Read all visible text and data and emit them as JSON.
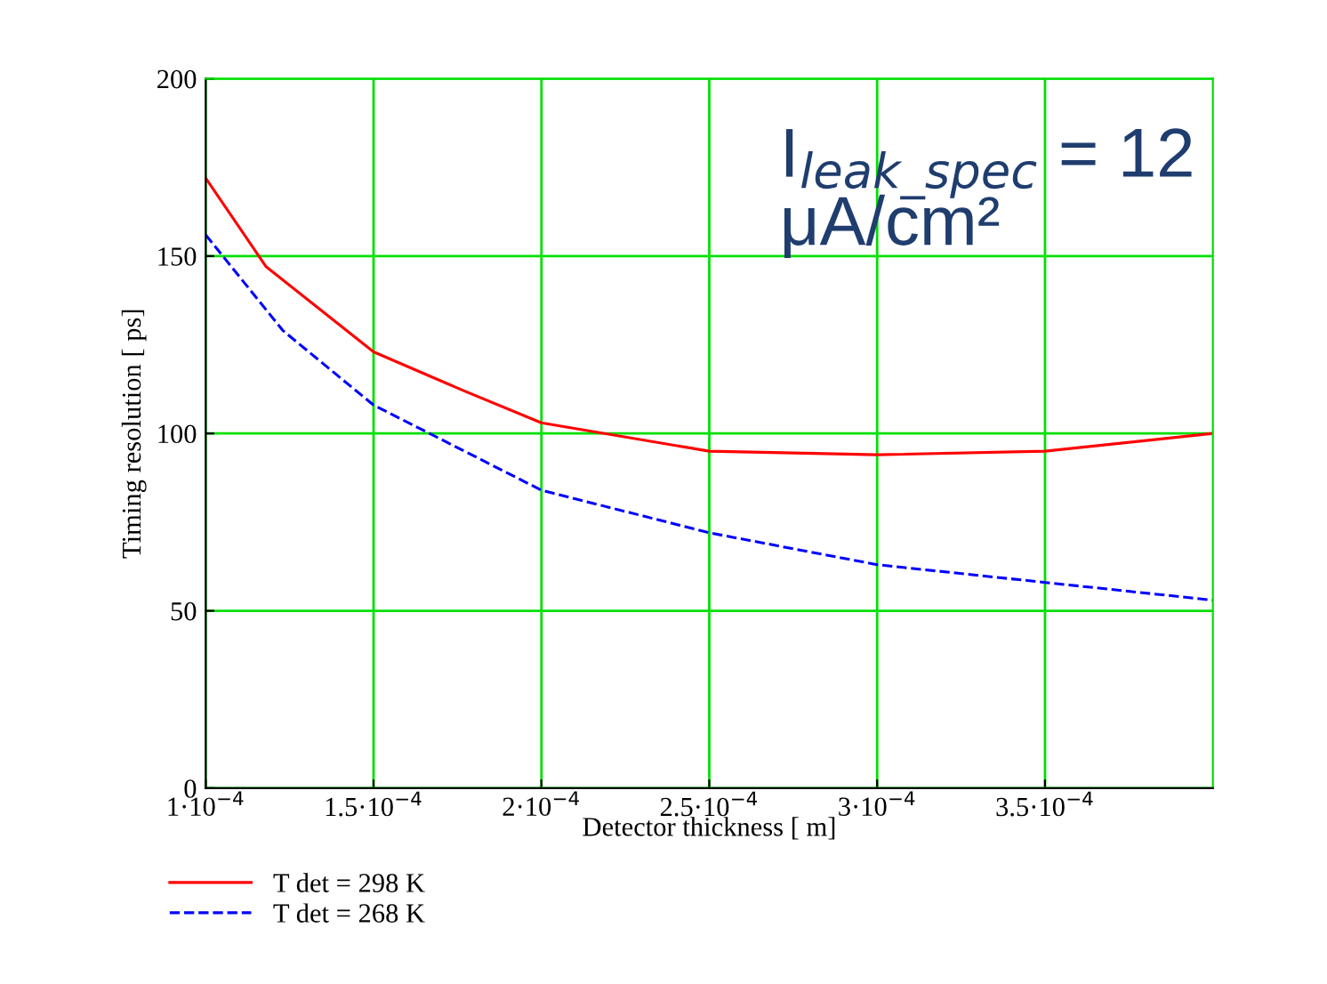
{
  "chart_data": {
    "type": "line",
    "xlabel": "Detector thickness [ m]",
    "ylabel": "Timing resolution [ ps]",
    "annotations": [
      "I$_{leak_spec}$ = 12\nμA/cm²"
    ],
    "series": [
      {
        "name": "T det = 298 K",
        "color": "#ff0000",
        "line_style": "solid",
        "x": [
          0.0001,
          0.000118,
          0.00015,
          0.000177,
          0.0002,
          0.00025,
          0.0003,
          0.00035,
          0.0004
        ],
        "values": [
          172,
          147,
          123,
          112,
          103,
          95,
          94,
          95,
          100
        ]
      },
      {
        "name": "T det = 268 K",
        "color": "#0000ff",
        "line_style": "dashed",
        "x": [
          0.0001,
          0.000123,
          0.00015,
          0.0002,
          0.00025,
          0.0003,
          0.00035,
          0.0004
        ],
        "values": [
          156,
          129,
          108,
          84,
          72,
          63,
          58,
          53
        ]
      }
    ],
    "xlim": [
      0.0001,
      0.0004
    ],
    "ylim": [
      0,
      200
    ],
    "xticks": [
      {
        "value": 0.0001,
        "label": "1·10$^{−4}$"
      },
      {
        "value": 0.00015,
        "label": "1.5·10$^{−4}$"
      },
      {
        "value": 0.0002,
        "label": "2·10$^{−4}$"
      },
      {
        "value": 0.00025,
        "label": "2.5·10$^{−4}$"
      },
      {
        "value": 0.0003,
        "label": "3·10$^{−4}$"
      },
      {
        "value": 0.00035,
        "label": "3.5·10$^{−4}$"
      }
    ],
    "yticks": [
      0,
      50,
      100,
      150,
      200
    ],
    "grid": true,
    "legend": "bottom left",
    "marker": "none"
  }
}
